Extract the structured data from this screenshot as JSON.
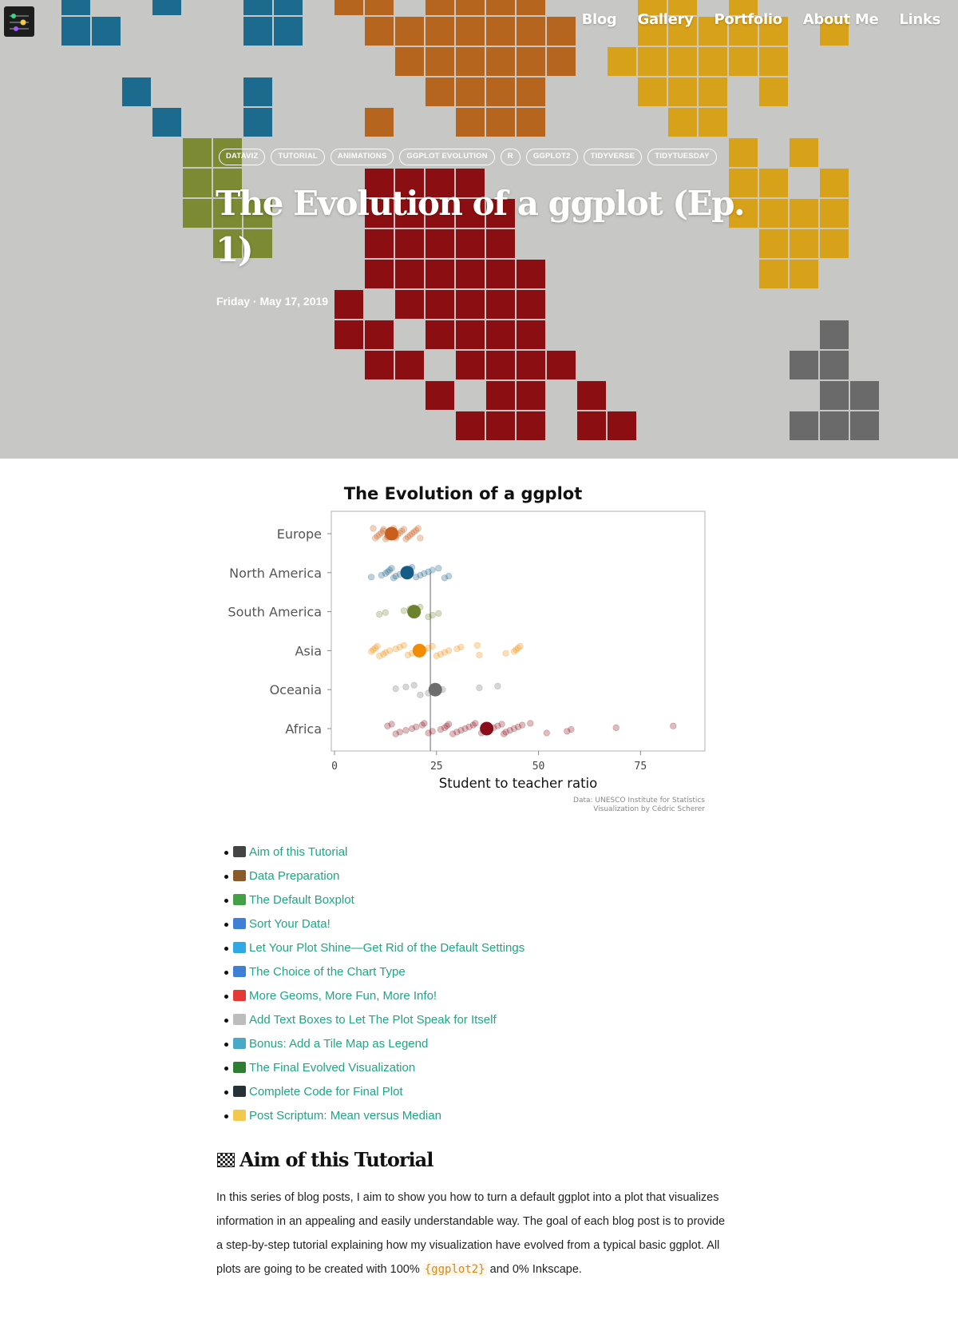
{
  "nav": {
    "items": [
      "Blog",
      "Gallery",
      "Portfolio",
      "About Me",
      "Links"
    ]
  },
  "hero": {
    "tags": [
      "DATAVIZ",
      "TUTORIAL",
      "ANIMATIONS",
      "GGPLOT EVOLUTION",
      "R",
      "GGPLOT2",
      "TIDYVERSE",
      "TIDYTUESDAY"
    ],
    "title": "The Evolution of a ggplot (Ep. 1)",
    "date": "Friday · May 17, 2019"
  },
  "chart_data": {
    "type": "scatter",
    "title": "The Evolution of a ggplot",
    "xlabel": "Student to teacher ratio",
    "ylabel": "",
    "xlim": [
      0,
      90
    ],
    "xticks": [
      0,
      25,
      50,
      75
    ],
    "categories": [
      "Europe",
      "North America",
      "South America",
      "Asia",
      "Oceania",
      "Africa"
    ],
    "world_average": 23.5,
    "grid": false,
    "caption_line1": "Data: UNESCO Institute for Statistics",
    "caption_line2": "Visualization by Cédric Scherer",
    "series": [
      {
        "name": "Europe",
        "color": "#c85f1d",
        "mean": 14.0,
        "points": [
          9.5,
          10,
          10.5,
          11,
          11.5,
          12,
          12,
          12.5,
          13,
          13,
          13.5,
          14,
          14,
          14.5,
          15,
          15,
          15.5,
          16,
          16.5,
          17,
          17.5,
          18,
          18.5,
          19,
          19.5,
          20,
          20.5,
          21
        ]
      },
      {
        "name": "North America",
        "color": "#175c86",
        "mean": 17.8,
        "points": [
          9,
          11.5,
          12.5,
          13,
          13.5,
          14,
          14.5,
          15,
          16,
          17,
          18,
          18.5,
          19,
          20,
          21,
          22,
          23,
          24,
          25.5,
          27,
          28
        ]
      },
      {
        "name": "South America",
        "color": "#6d822f",
        "mean": 19.5,
        "points": [
          11,
          12.5,
          17,
          18.5,
          21,
          23,
          24,
          25.5
        ]
      },
      {
        "name": "Asia",
        "color": "#f28b06",
        "mean": 20.8,
        "points": [
          9,
          9.5,
          10,
          10.5,
          11,
          12,
          12.5,
          13.5,
          15,
          16,
          17,
          18,
          19,
          20,
          22,
          23,
          24,
          25,
          26,
          27,
          28,
          30,
          31,
          35,
          35.5,
          42,
          44,
          44.5,
          45,
          45.5
        ]
      },
      {
        "name": "Oceania",
        "color": "#6e6e6e",
        "mean": 24.7,
        "points": [
          15,
          17.5,
          19.5,
          21,
          23,
          25.5,
          26.5,
          35.5,
          40
        ]
      },
      {
        "name": "Africa",
        "color": "#8a0d1a",
        "mean": 37.3,
        "points": [
          13,
          14,
          15,
          16,
          17.5,
          19,
          20,
          21.5,
          22,
          23,
          24,
          26,
          27,
          27.5,
          28,
          29,
          30,
          31,
          32,
          33,
          34,
          34.5,
          36,
          37,
          38,
          39,
          40,
          41,
          41.5,
          42,
          43,
          44,
          45,
          46,
          48,
          52,
          57,
          58,
          69,
          83
        ]
      }
    ]
  },
  "toc": [
    {
      "icon": "checkered-flag-icon",
      "label": "Aim of this Tutorial",
      "color": "#444444"
    },
    {
      "icon": "card-box-icon",
      "label": "Data Preparation",
      "color": "#8a5a2b"
    },
    {
      "icon": "seedling-icon",
      "label": "The Default Boxplot",
      "color": "#43a047"
    },
    {
      "icon": "shuffle-icon",
      "label": "Sort Your Data!",
      "color": "#3f7fd6"
    },
    {
      "icon": "gem-icon",
      "label": "Let Your Plot Shine—Get Rid of the Default Settings",
      "color": "#2fa8e6"
    },
    {
      "icon": "bar-chart-icon",
      "label": "The Choice of the Chart Type",
      "color": "#3f7fd6"
    },
    {
      "icon": "hundred-points-icon",
      "label": "More Geoms, More Fun, More Info!",
      "color": "#e53935"
    },
    {
      "icon": "speech-balloon-icon",
      "label": "Add Text Boxes to Let The Plot Speak for Itself",
      "color": "#bdbdbd"
    },
    {
      "icon": "world-map-icon",
      "label": "Bonus: Add a Tile Map as Legend",
      "color": "#4aa8c9"
    },
    {
      "icon": "christmas-tree-icon",
      "label": "The Final Evolved Visualization",
      "color": "#2e7d32"
    },
    {
      "icon": "laptop-icon",
      "label": "Complete Code for Final Plot",
      "color": "#263238"
    },
    {
      "icon": "memo-icon",
      "label": "Post Scriptum: Mean versus Median",
      "color": "#f2c94c"
    }
  ],
  "article": {
    "section_title": "Aim of this Tutorial",
    "intro_before": "In this series of blog posts, I aim to show you how to turn a default ggplot into a plot that visualizes information in an appealing and easily understandable way. The goal of each blog post is to provide a step-by-step tutorial explaining how my visualization have evolved from a typical basic ggplot. All plots are going to be created with 100% ",
    "intro_code": "{ggplot2}",
    "intro_after": " and 0% Inkscape."
  }
}
